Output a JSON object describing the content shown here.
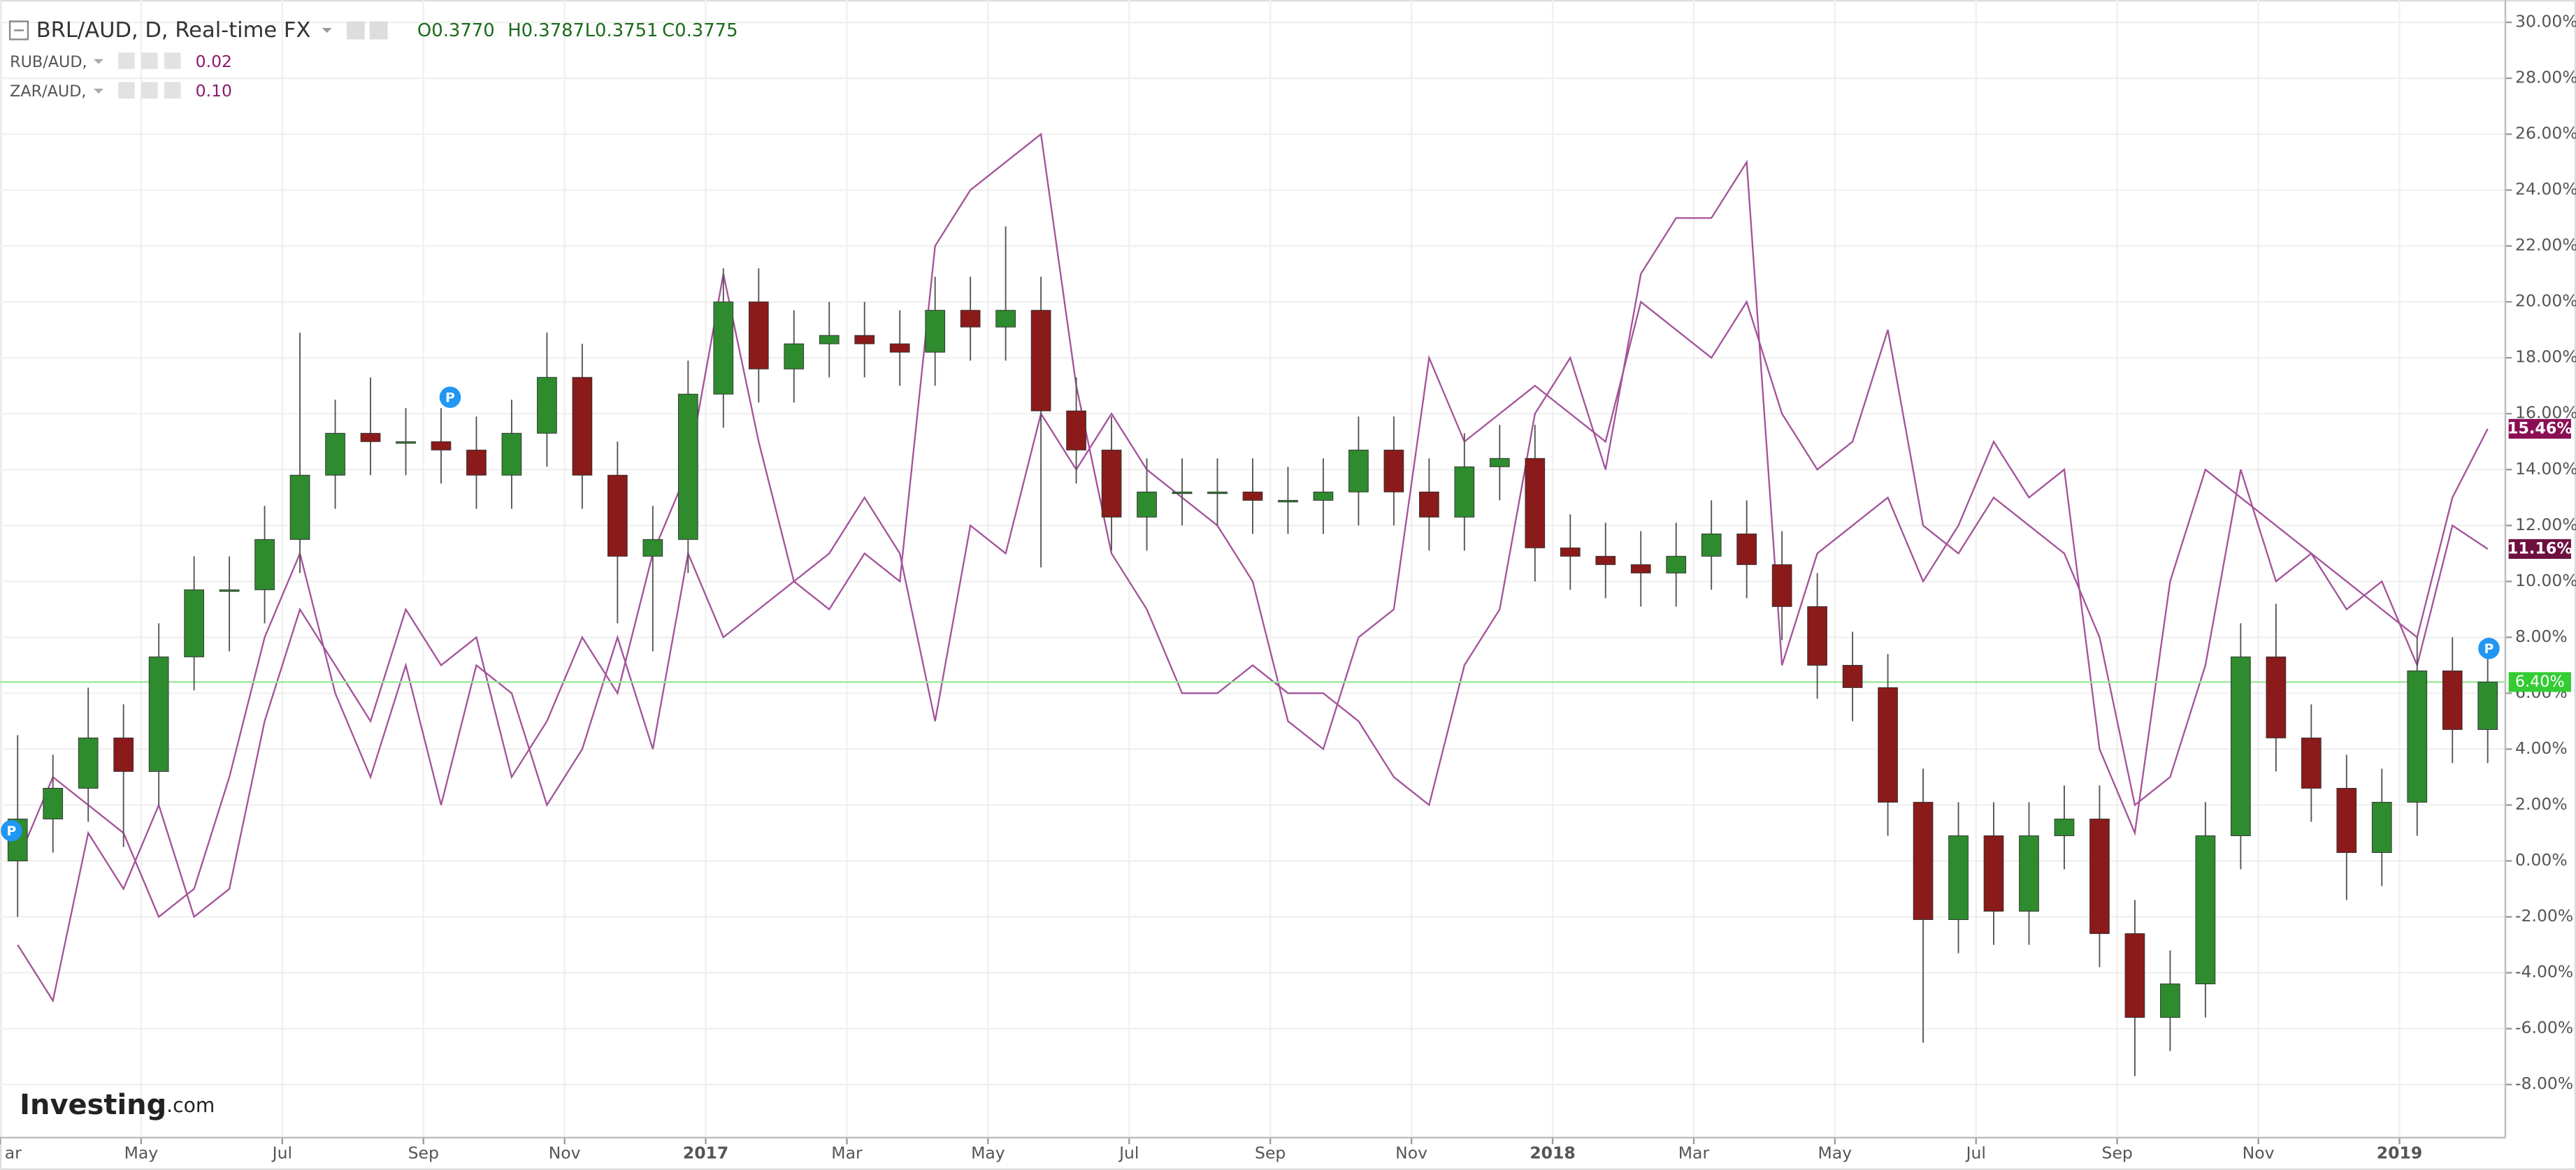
{
  "chart_data": {
    "type": "candlestick",
    "title": "BRL/AUD, D, Real-time FX",
    "ohlc_labels": [
      "O0.3770",
      "H0.3787",
      "L0.3751",
      "C0.3775"
    ],
    "logo": "Investing",
    "logo_suffix": ".com",
    "markers": [
      "P",
      "P",
      "P"
    ],
    "categories": [
      "ar",
      null,
      null,
      null,
      "May",
      null,
      null,
      null,
      "Jul",
      null,
      null,
      null,
      "Sep",
      null,
      null,
      null,
      "Nov",
      null,
      null,
      null,
      "2017",
      null,
      null,
      null,
      "Mar",
      null,
      null,
      null,
      "May",
      null,
      null,
      null,
      "Jul",
      null,
      null,
      null,
      "Sep",
      null,
      null,
      null,
      "Nov",
      null,
      null,
      null,
      "2018",
      null,
      null,
      null,
      "Mar",
      null,
      null,
      null,
      "May",
      null,
      null,
      null,
      "Jul",
      null,
      null,
      null,
      "Sep",
      null,
      null,
      null,
      "Nov",
      null,
      null,
      null,
      "2019",
      null,
      null
    ],
    "ylim": [
      -9.9,
      30.8
    ],
    "yticks": [
      {
        "value": -8,
        "label": "-8.00%"
      },
      {
        "value": -6,
        "label": "-6.00%"
      },
      {
        "value": -4,
        "label": "-4.00%"
      },
      {
        "value": -2,
        "label": "-2.00%"
      },
      {
        "value": 0,
        "label": "0.00%"
      },
      {
        "value": 2,
        "label": "2.00%"
      },
      {
        "value": 4,
        "label": "4.00%"
      },
      {
        "value": 6,
        "label": "6.00%"
      },
      {
        "value": 8,
        "label": "8.00%"
      },
      {
        "value": 10,
        "label": "10.00%"
      },
      {
        "value": 12,
        "label": "12.00%"
      },
      {
        "value": 14,
        "label": "14.00%"
      },
      {
        "value": 16,
        "label": "16.00%"
      },
      {
        "value": 18,
        "label": "18.00%"
      },
      {
        "value": 20,
        "label": "20.00%"
      },
      {
        "value": 22,
        "label": "22.00%"
      },
      {
        "value": 24,
        "label": "24.00%"
      },
      {
        "value": 26,
        "label": "26.00%"
      },
      {
        "value": 28,
        "label": "28.00%"
      },
      {
        "value": 30,
        "label": "30.00%"
      }
    ],
    "grid": true,
    "series": [
      {
        "type": "candlestick",
        "up_color": "#2e8b2e",
        "down_color": "#8b1a1a",
        "tag_color": "#33cc33",
        "open": [
          0,
          1.5,
          2.6,
          4.4,
          3.2,
          7.3,
          9.7,
          9.7,
          11.5,
          13.8,
          15.3,
          15.0,
          15.0,
          14.7,
          13.8,
          15.3,
          17.3,
          13.8,
          10.9,
          11.5,
          16.7,
          20.0,
          17.6,
          18.5,
          18.8,
          18.5,
          18.2,
          19.7,
          19.1,
          19.7,
          16.1,
          14.7,
          12.3,
          13.2,
          13.2,
          13.2,
          12.9,
          12.9,
          13.2,
          14.7,
          13.2,
          12.3,
          14.1,
          14.4,
          11.2,
          10.9,
          10.6,
          10.3,
          10.9,
          11.7,
          10.6,
          9.1,
          7.0,
          6.2,
          2.1,
          -2.1,
          0.9,
          -1.8,
          0.9,
          1.5,
          -2.6,
          -5.6,
          -4.4,
          0.9,
          7.3,
          4.4,
          2.6,
          0.3,
          2.1,
          6.8,
          4.7
        ],
        "high": [
          4.5,
          3.8,
          6.2,
          5.6,
          8.5,
          10.9,
          10.9,
          12.7,
          18.9,
          16.5,
          17.3,
          16.2,
          16.2,
          15.9,
          16.5,
          18.9,
          18.5,
          15.0,
          12.7,
          17.9,
          21.2,
          21.2,
          19.7,
          20.0,
          20.0,
          19.7,
          20.9,
          20.9,
          22.7,
          20.9,
          17.3,
          15.9,
          14.4,
          14.4,
          14.4,
          14.4,
          14.1,
          14.4,
          15.9,
          15.9,
          14.4,
          15.3,
          15.6,
          15.6,
          12.4,
          12.1,
          11.8,
          12.1,
          12.9,
          12.9,
          11.8,
          10.3,
          8.2,
          7.4,
          3.3,
          2.1,
          2.1,
          2.1,
          2.7,
          2.7,
          -1.4,
          -3.2,
          2.1,
          8.5,
          9.2,
          5.6,
          3.8,
          3.3,
          8.0,
          8.0,
          7.6
        ],
        "low": [
          -2.0,
          0.3,
          1.4,
          0.5,
          2.0,
          6.1,
          7.5,
          8.5,
          10.3,
          12.6,
          13.8,
          13.8,
          13.5,
          12.6,
          12.6,
          14.1,
          12.6,
          8.5,
          7.5,
          10.3,
          15.5,
          16.4,
          16.4,
          17.3,
          17.3,
          17.0,
          17.0,
          17.9,
          17.9,
          10.5,
          13.5,
          11.1,
          11.1,
          12.0,
          12.0,
          11.7,
          11.7,
          11.7,
          12.0,
          12.0,
          11.1,
          11.1,
          12.9,
          10.0,
          9.7,
          9.4,
          9.1,
          9.1,
          9.7,
          9.4,
          7.9,
          5.8,
          5.0,
          0.9,
          -6.5,
          -3.3,
          -3.0,
          -3.0,
          -0.3,
          -3.8,
          -7.7,
          -6.8,
          -5.6,
          -0.3,
          3.2,
          1.4,
          -1.4,
          -0.9,
          0.9,
          3.5,
          3.5
        ],
        "close": [
          1.5,
          2.6,
          4.4,
          3.2,
          7.3,
          9.7,
          9.7,
          11.5,
          13.8,
          15.3,
          15.0,
          15.0,
          14.7,
          13.8,
          15.3,
          17.3,
          13.8,
          10.9,
          11.5,
          16.7,
          20.0,
          17.6,
          18.5,
          18.8,
          18.5,
          18.2,
          19.7,
          19.1,
          19.7,
          16.1,
          14.7,
          12.3,
          13.2,
          13.2,
          13.2,
          12.9,
          12.9,
          13.2,
          14.7,
          13.2,
          12.3,
          14.1,
          14.4,
          11.2,
          10.9,
          10.6,
          10.3,
          10.9,
          11.7,
          10.6,
          9.1,
          7.0,
          6.2,
          2.1,
          -2.1,
          0.9,
          -1.8,
          0.9,
          1.5,
          -2.6,
          -5.6,
          -4.4,
          0.9,
          7.3,
          4.4,
          2.6,
          0.3,
          2.1,
          6.8,
          4.7,
          6.4
        ],
        "value_labels": [
          null,
          null,
          null,
          null,
          null,
          null,
          null,
          null,
          null,
          null,
          null,
          null,
          null,
          null,
          null,
          null,
          null,
          null,
          null,
          null,
          null,
          null,
          null,
          null,
          null,
          null,
          null,
          null,
          null,
          null,
          null,
          null,
          null,
          null,
          null,
          null,
          null,
          null,
          null,
          null,
          null,
          null,
          null,
          null,
          null,
          null,
          null,
          null,
          null,
          null,
          null,
          null,
          null,
          null,
          null,
          null,
          null,
          null,
          null,
          null,
          null,
          null,
          null,
          null,
          null,
          null,
          null,
          null,
          null,
          null,
          "6.40%"
        ]
      },
      {
        "type": "line",
        "name": "RUB/AUD,",
        "price": "0.02",
        "color": "#a4549b",
        "tag_color": "#8b0e55",
        "values": [
          -3,
          -5,
          1,
          -1,
          2,
          -2,
          -1,
          5,
          9,
          7,
          5,
          9,
          7,
          8,
          3,
          5,
          8,
          6,
          11,
          14,
          21,
          15,
          10,
          9,
          11,
          10,
          22,
          24,
          25,
          26,
          17,
          11,
          9,
          6,
          6,
          7,
          6,
          6,
          5,
          3,
          2,
          7,
          9,
          16,
          18,
          14,
          21,
          23,
          23,
          25,
          7,
          11,
          12,
          13,
          10,
          12,
          15,
          13,
          14,
          4,
          1,
          10,
          14,
          13,
          12,
          11,
          10,
          9,
          8,
          13,
          15.46
        ],
        "value_labels": [
          null,
          null,
          null,
          null,
          null,
          null,
          null,
          null,
          null,
          null,
          null,
          null,
          null,
          null,
          null,
          null,
          null,
          null,
          null,
          null,
          null,
          null,
          null,
          null,
          null,
          null,
          null,
          null,
          null,
          null,
          null,
          null,
          null,
          null,
          null,
          null,
          null,
          null,
          null,
          null,
          null,
          null,
          null,
          null,
          null,
          null,
          null,
          null,
          null,
          null,
          null,
          null,
          null,
          null,
          null,
          null,
          null,
          null,
          null,
          null,
          null,
          null,
          null,
          null,
          null,
          null,
          null,
          null,
          null,
          null,
          "15.46%"
        ]
      },
      {
        "type": "line",
        "name": "ZAR/AUD,",
        "price": "0.10",
        "color": "#a4549b",
        "tag_color": "#6e0f3f",
        "values": [
          0,
          3,
          2,
          1,
          -2,
          -1,
          3,
          8,
          11,
          6,
          3,
          7,
          2,
          7,
          6,
          2,
          4,
          8,
          4,
          11,
          8,
          9,
          10,
          11,
          13,
          11,
          5,
          12,
          11,
          16,
          14,
          16,
          14,
          13,
          12,
          10,
          5,
          4,
          8,
          9,
          18,
          15,
          16,
          17,
          16,
          15,
          20,
          19,
          18,
          20,
          16,
          14,
          15,
          19,
          12,
          11,
          13,
          12,
          11,
          8,
          2,
          3,
          7,
          14,
          10,
          11,
          9,
          10,
          7,
          12,
          11.16
        ],
        "value_labels": [
          null,
          null,
          null,
          null,
          null,
          null,
          null,
          null,
          null,
          null,
          null,
          null,
          null,
          null,
          null,
          null,
          null,
          null,
          null,
          null,
          null,
          null,
          null,
          null,
          null,
          null,
          null,
          null,
          null,
          null,
          null,
          null,
          null,
          null,
          null,
          null,
          null,
          null,
          null,
          null,
          null,
          null,
          null,
          null,
          null,
          null,
          null,
          null,
          null,
          null,
          null,
          null,
          null,
          null,
          null,
          null,
          null,
          null,
          null,
          null,
          null,
          null,
          null,
          null,
          null,
          null,
          null,
          null,
          null,
          null,
          "11.16%"
        ]
      }
    ]
  }
}
